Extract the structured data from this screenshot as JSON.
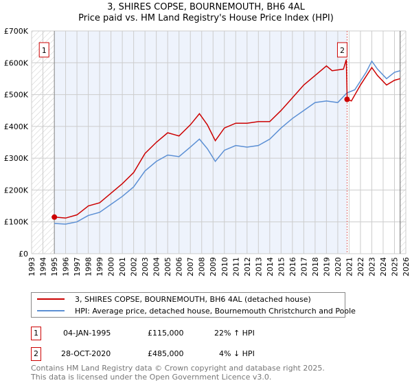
{
  "chart_data": {
    "type": "line",
    "title": "3, SHIRES COPSE, BOURNEMOUTH, BH6 4AL",
    "subtitle": "Price paid vs. HM Land Registry's House Price Index (HPI)",
    "xlim": [
      1993,
      2026
    ],
    "ylim": [
      0,
      700000
    ],
    "x_ticks": [
      "1993",
      "1994",
      "1995",
      "1996",
      "1997",
      "1998",
      "1999",
      "2000",
      "2001",
      "2002",
      "2003",
      "2004",
      "2005",
      "2006",
      "2007",
      "2008",
      "2009",
      "2010",
      "2011",
      "2012",
      "2013",
      "2014",
      "2015",
      "2016",
      "2017",
      "2018",
      "2019",
      "2020",
      "2021",
      "2022",
      "2023",
      "2024",
      "2025",
      "2026"
    ],
    "y_ticks": [
      {
        "v": 0,
        "label": "£0"
      },
      {
        "v": 100000,
        "label": "£100K"
      },
      {
        "v": 200000,
        "label": "£200K"
      },
      {
        "v": 300000,
        "label": "£300K"
      },
      {
        "v": 400000,
        "label": "£400K"
      },
      {
        "v": 500000,
        "label": "£500K"
      },
      {
        "v": 600000,
        "label": "£600K"
      },
      {
        "v": 700000,
        "label": "£700K"
      }
    ],
    "series": [
      {
        "name": "3, SHIRES COPSE, BOURNEMOUTH, BH6 4AL (detached house)",
        "color": "#cc0000",
        "x": [
          1995,
          1996,
          1997,
          1998,
          1999,
          2000,
          2001,
          2002,
          2003,
          2004,
          2005,
          2006,
          2007,
          2007.8,
          2008.5,
          2009.2,
          2010,
          2011,
          2012,
          2013,
          2014,
          2015,
          2016,
          2017,
          2018,
          2019,
          2019.5,
          2020.5,
          2020.75,
          2020.83,
          2021.2,
          2022,
          2023,
          2023.5,
          2024.3,
          2025,
          2025.5
        ],
        "y": [
          115000,
          112000,
          122000,
          150000,
          160000,
          190000,
          220000,
          255000,
          315000,
          350000,
          380000,
          370000,
          405000,
          440000,
          405000,
          355000,
          395000,
          410000,
          410000,
          415000,
          415000,
          450000,
          490000,
          530000,
          560000,
          590000,
          575000,
          580000,
          610000,
          485000,
          480000,
          530000,
          585000,
          560000,
          530000,
          545000,
          550000
        ]
      },
      {
        "name": "HPI: Average price, detached house, Bournemouth Christchurch and Poole",
        "color": "#5b8fd4",
        "x": [
          1995,
          1996,
          1997,
          1998,
          1999,
          2000,
          2001,
          2002,
          2003,
          2004,
          2005,
          2006,
          2007,
          2007.8,
          2008.5,
          2009.2,
          2010,
          2011,
          2012,
          2013,
          2014,
          2015,
          2016,
          2017,
          2018,
          2019,
          2020,
          2020.8,
          2021.5,
          2022.5,
          2023,
          2023.5,
          2024.3,
          2025,
          2025.5
        ],
        "y": [
          95000,
          93000,
          100000,
          120000,
          130000,
          155000,
          180000,
          210000,
          260000,
          290000,
          310000,
          305000,
          335000,
          360000,
          330000,
          290000,
          325000,
          340000,
          335000,
          340000,
          360000,
          395000,
          425000,
          450000,
          475000,
          480000,
          475000,
          505000,
          515000,
          570000,
          605000,
          580000,
          550000,
          570000,
          575000
        ]
      }
    ],
    "sales": [
      {
        "label": "1",
        "x": 1995.01,
        "y": 115000
      },
      {
        "label": "2",
        "x": 2020.82,
        "y": 485000
      }
    ]
  },
  "legend": [
    "3, SHIRES COPSE, BOURNEMOUTH, BH6 4AL (detached house)",
    "HPI: Average price, detached house, Bournemouth Christchurch and Poole"
  ],
  "transactions": [
    {
      "num": "1",
      "date": "04-JAN-1995",
      "price": "£115,000",
      "hpi": "22% ↑ HPI"
    },
    {
      "num": "2",
      "date": "28-OCT-2020",
      "price": "£485,000",
      "hpi": "4% ↓ HPI"
    }
  ],
  "footer": [
    "Contains HM Land Registry data © Crown copyright and database right 2025.",
    "This data is licensed under the Open Government Licence v3.0."
  ]
}
